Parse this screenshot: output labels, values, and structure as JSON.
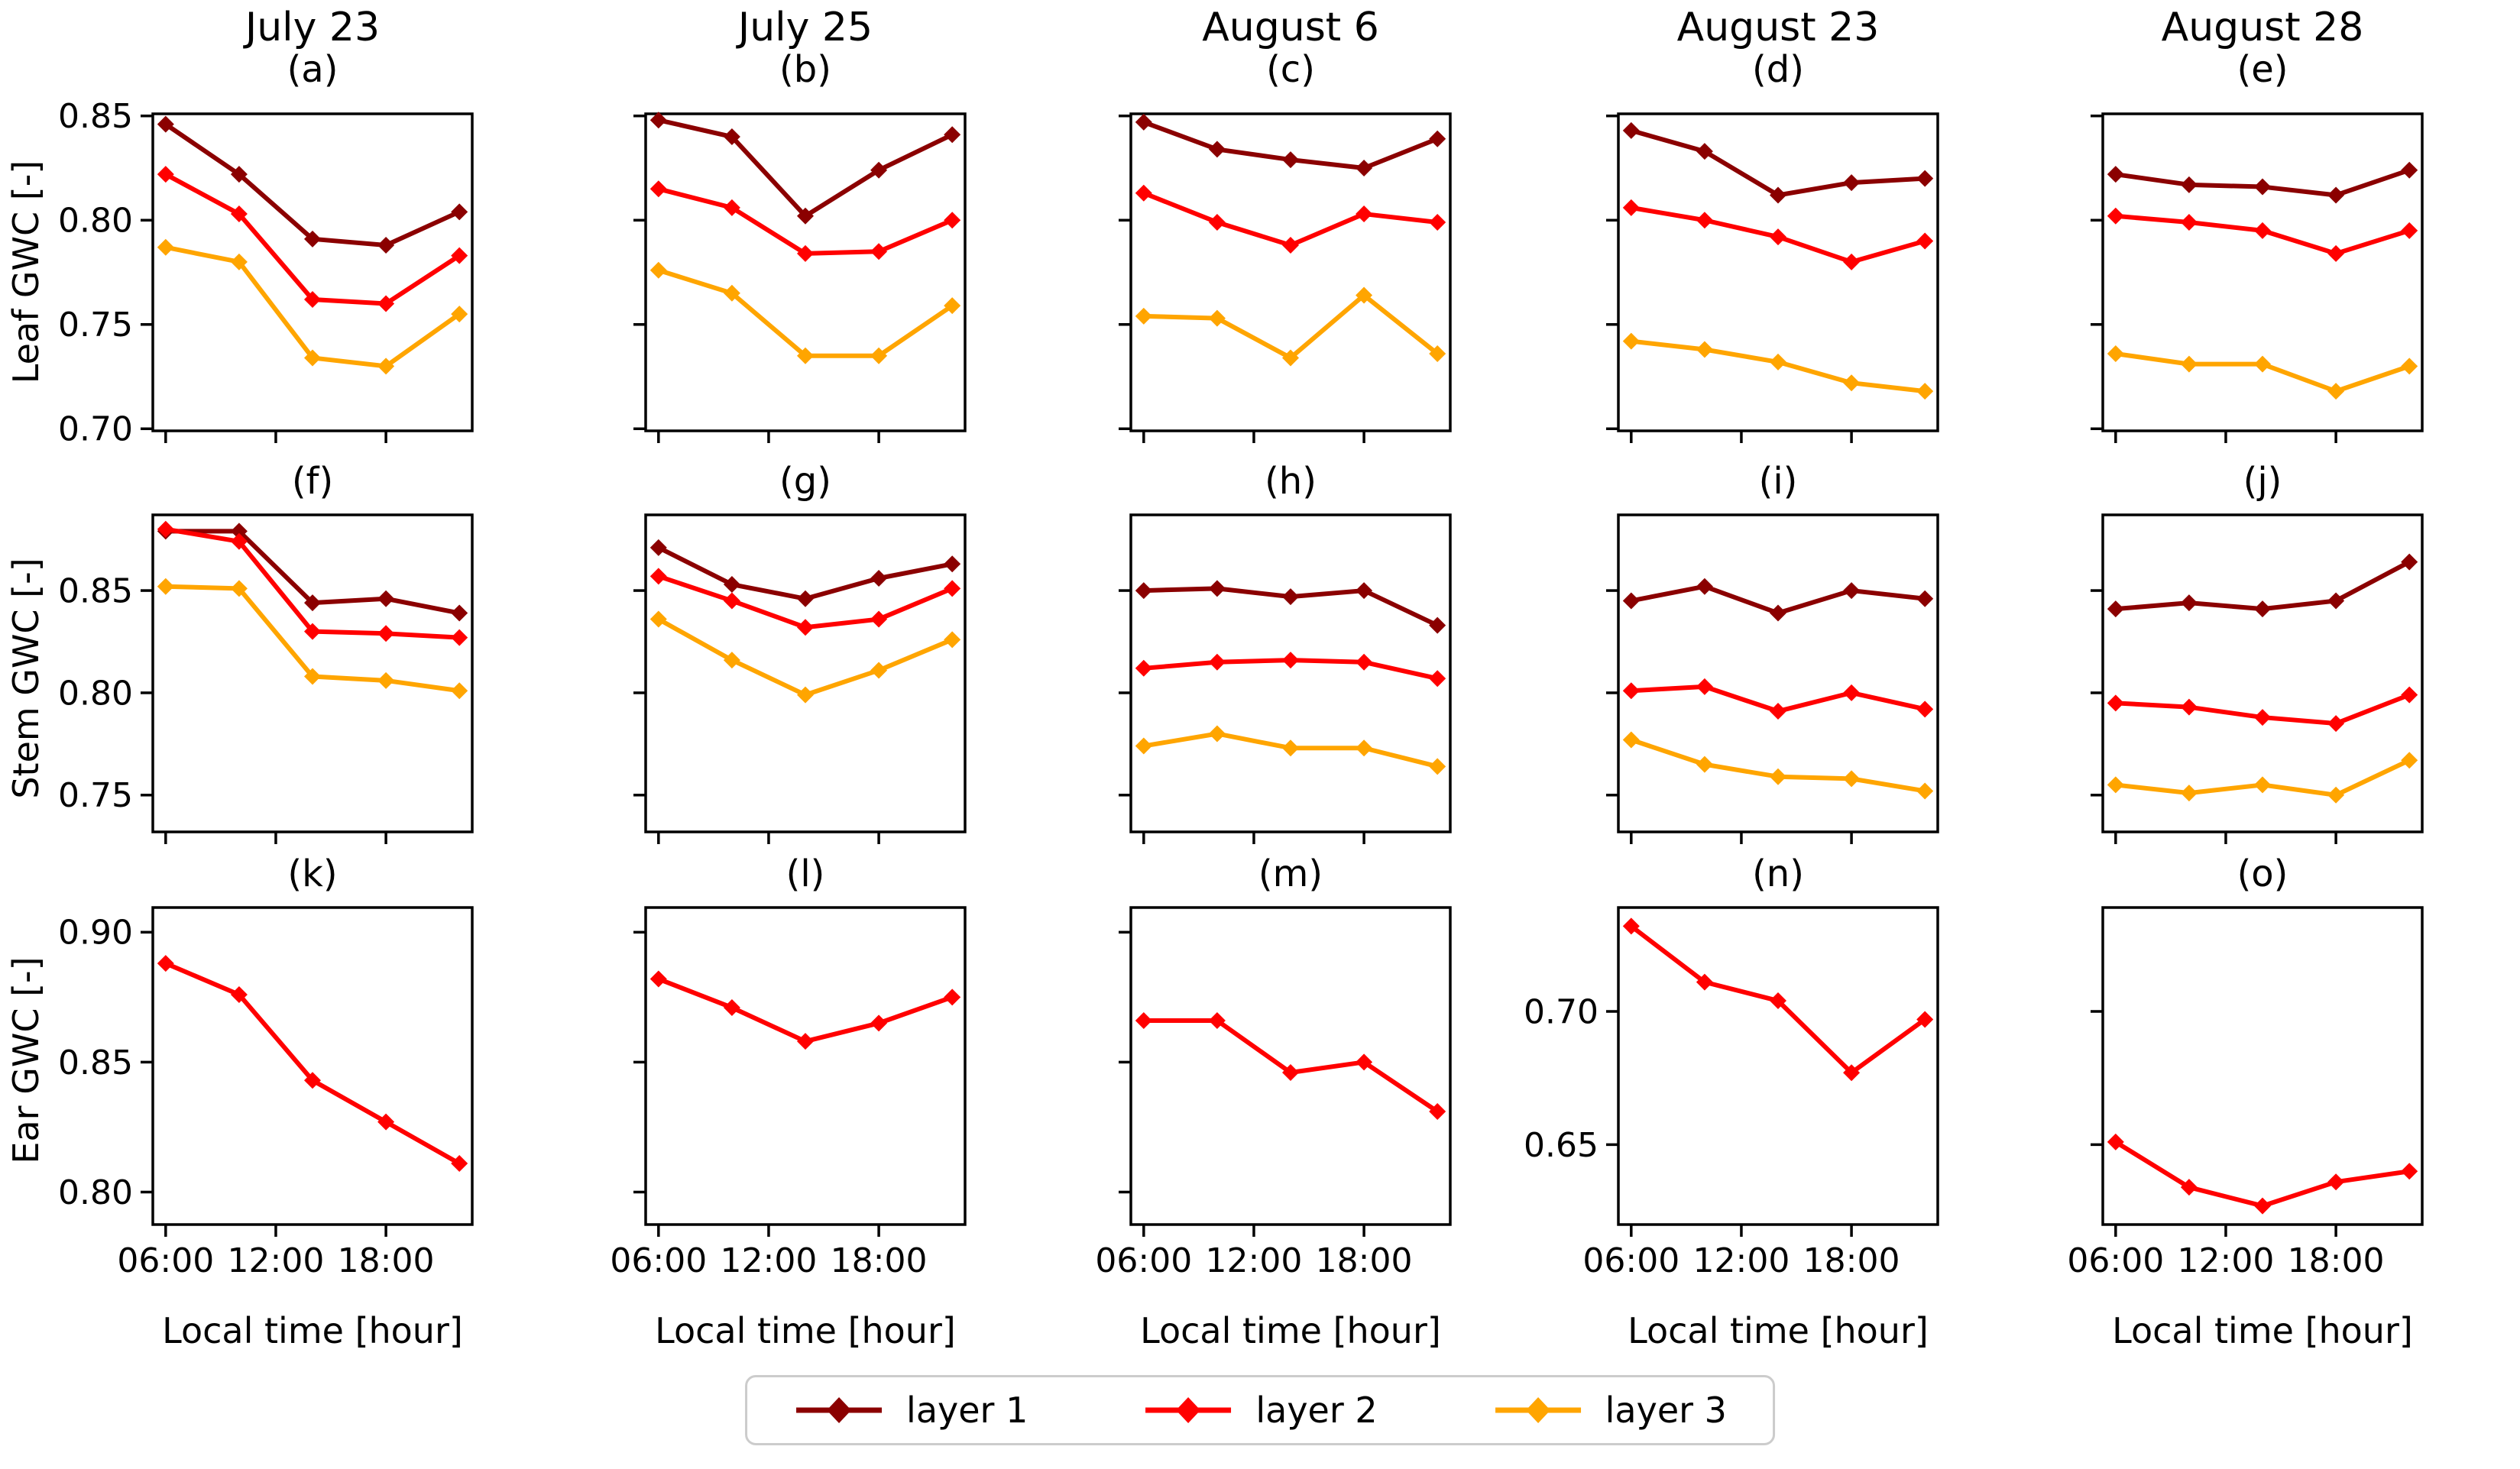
{
  "figure": {
    "xlabel": "Local time [hour]",
    "xlim": [
      5.3,
      22.7
    ],
    "xticks": {
      "values": [
        6,
        12,
        18
      ],
      "labels": [
        "06:00",
        "12:00",
        "18:00"
      ]
    },
    "x_hours": [
      6,
      10,
      14,
      18,
      22
    ],
    "colors": {
      "layer1": "#8B0000",
      "layer2": "#FF0000",
      "layer3": "#FFA500",
      "axis": "#000000",
      "legend_border": "#cccccc"
    }
  },
  "rows": [
    {
      "ylabel": "Leaf GWC [-]"
    },
    {
      "ylabel": "Stem GWC [-]"
    },
    {
      "ylabel": "Ear GWC [-]"
    }
  ],
  "legend": {
    "entries": [
      {
        "label": "layer 1",
        "color": "#8B0000"
      },
      {
        "label": "layer 2",
        "color": "#FF0000"
      },
      {
        "label": "layer 3",
        "color": "#FFA500"
      }
    ]
  },
  "chart_data": [
    {
      "type": "line",
      "panel": "(a)",
      "column_title": "July 23",
      "row": 0,
      "col": 0,
      "ylim": [
        0.699,
        0.851
      ],
      "yticks": {
        "values": [
          0.7,
          0.75,
          0.8,
          0.85
        ],
        "labels": [
          "0.70",
          "0.75",
          "0.80",
          "0.85"
        ],
        "show_labels": true
      },
      "x": [
        6,
        10,
        14,
        18,
        22
      ],
      "series": [
        {
          "name": "layer 1",
          "color": "#8B0000",
          "values": [
            0.846,
            0.822,
            0.791,
            0.788,
            0.804
          ]
        },
        {
          "name": "layer 2",
          "color": "#FF0000",
          "values": [
            0.822,
            0.803,
            0.762,
            0.76,
            0.783
          ]
        },
        {
          "name": "layer 3",
          "color": "#FFA500",
          "values": [
            0.787,
            0.78,
            0.734,
            0.73,
            0.755
          ]
        }
      ]
    },
    {
      "type": "line",
      "panel": "(b)",
      "column_title": "July 25",
      "row": 0,
      "col": 1,
      "ylim": [
        0.699,
        0.851
      ],
      "yticks": {
        "values": [
          0.7,
          0.75,
          0.8,
          0.85
        ],
        "labels": [
          "0.70",
          "0.75",
          "0.80",
          "0.85"
        ],
        "show_labels": false
      },
      "x": [
        6,
        10,
        14,
        18,
        22
      ],
      "series": [
        {
          "name": "layer 1",
          "color": "#8B0000",
          "values": [
            0.848,
            0.84,
            0.802,
            0.824,
            0.841
          ]
        },
        {
          "name": "layer 2",
          "color": "#FF0000",
          "values": [
            0.815,
            0.806,
            0.784,
            0.785,
            0.8
          ]
        },
        {
          "name": "layer 3",
          "color": "#FFA500",
          "values": [
            0.776,
            0.765,
            0.735,
            0.735,
            0.759
          ]
        }
      ]
    },
    {
      "type": "line",
      "panel": "(c)",
      "column_title": "August 6",
      "row": 0,
      "col": 2,
      "ylim": [
        0.699,
        0.851
      ],
      "yticks": {
        "values": [
          0.7,
          0.75,
          0.8,
          0.85
        ],
        "labels": [
          "0.70",
          "0.75",
          "0.80",
          "0.85"
        ],
        "show_labels": false
      },
      "x": [
        6,
        10,
        14,
        18,
        22
      ],
      "series": [
        {
          "name": "layer 1",
          "color": "#8B0000",
          "values": [
            0.847,
            0.834,
            0.829,
            0.825,
            0.839
          ]
        },
        {
          "name": "layer 2",
          "color": "#FF0000",
          "values": [
            0.813,
            0.799,
            0.788,
            0.803,
            0.799
          ]
        },
        {
          "name": "layer 3",
          "color": "#FFA500",
          "values": [
            0.754,
            0.753,
            0.734,
            0.764,
            0.736
          ]
        }
      ]
    },
    {
      "type": "line",
      "panel": "(d)",
      "column_title": "August 23",
      "row": 0,
      "col": 3,
      "ylim": [
        0.699,
        0.851
      ],
      "yticks": {
        "values": [
          0.7,
          0.75,
          0.8,
          0.85
        ],
        "labels": [
          "0.70",
          "0.75",
          "0.80",
          "0.85"
        ],
        "show_labels": false
      },
      "x": [
        6,
        10,
        14,
        18,
        22
      ],
      "series": [
        {
          "name": "layer 1",
          "color": "#8B0000",
          "values": [
            0.843,
            0.833,
            0.812,
            0.818,
            0.82
          ]
        },
        {
          "name": "layer 2",
          "color": "#FF0000",
          "values": [
            0.806,
            0.8,
            0.792,
            0.78,
            0.79
          ]
        },
        {
          "name": "layer 3",
          "color": "#FFA500",
          "values": [
            0.742,
            0.738,
            0.732,
            0.722,
            0.718
          ]
        }
      ]
    },
    {
      "type": "line",
      "panel": "(e)",
      "column_title": "August 28",
      "row": 0,
      "col": 4,
      "ylim": [
        0.699,
        0.851
      ],
      "yticks": {
        "values": [
          0.7,
          0.75,
          0.8,
          0.85
        ],
        "labels": [
          "0.70",
          "0.75",
          "0.80",
          "0.85"
        ],
        "show_labels": false
      },
      "x": [
        6,
        10,
        14,
        18,
        22
      ],
      "series": [
        {
          "name": "layer 1",
          "color": "#8B0000",
          "values": [
            0.822,
            0.817,
            0.816,
            0.812,
            0.824
          ]
        },
        {
          "name": "layer 2",
          "color": "#FF0000",
          "values": [
            0.802,
            0.799,
            0.795,
            0.784,
            0.795
          ]
        },
        {
          "name": "layer 3",
          "color": "#FFA500",
          "values": [
            0.736,
            0.731,
            0.731,
            0.718,
            0.73
          ]
        }
      ]
    },
    {
      "type": "line",
      "panel": "(f)",
      "column_title": null,
      "row": 1,
      "col": 0,
      "ylim": [
        0.732,
        0.887
      ],
      "yticks": {
        "values": [
          0.75,
          0.8,
          0.85
        ],
        "labels": [
          "0.75",
          "0.80",
          "0.85"
        ],
        "show_labels": true
      },
      "x": [
        6,
        10,
        14,
        18,
        22
      ],
      "series": [
        {
          "name": "layer 1",
          "color": "#8B0000",
          "values": [
            0.879,
            0.879,
            0.844,
            0.846,
            0.839
          ]
        },
        {
          "name": "layer 2",
          "color": "#FF0000",
          "values": [
            0.88,
            0.874,
            0.83,
            0.829,
            0.827
          ]
        },
        {
          "name": "layer 3",
          "color": "#FFA500",
          "values": [
            0.852,
            0.851,
            0.808,
            0.806,
            0.801
          ]
        }
      ]
    },
    {
      "type": "line",
      "panel": "(g)",
      "column_title": null,
      "row": 1,
      "col": 1,
      "ylim": [
        0.732,
        0.887
      ],
      "yticks": {
        "values": [
          0.75,
          0.8,
          0.85
        ],
        "labels": [
          "0.75",
          "0.80",
          "0.85"
        ],
        "show_labels": false
      },
      "x": [
        6,
        10,
        14,
        18,
        22
      ],
      "series": [
        {
          "name": "layer 1",
          "color": "#8B0000",
          "values": [
            0.871,
            0.853,
            0.846,
            0.856,
            0.863
          ]
        },
        {
          "name": "layer 2",
          "color": "#FF0000",
          "values": [
            0.857,
            0.845,
            0.832,
            0.836,
            0.851
          ]
        },
        {
          "name": "layer 3",
          "color": "#FFA500",
          "values": [
            0.836,
            0.816,
            0.799,
            0.811,
            0.826
          ]
        }
      ]
    },
    {
      "type": "line",
      "panel": "(h)",
      "column_title": null,
      "row": 1,
      "col": 2,
      "ylim": [
        0.732,
        0.887
      ],
      "yticks": {
        "values": [
          0.75,
          0.8,
          0.85
        ],
        "labels": [
          "0.75",
          "0.80",
          "0.85"
        ],
        "show_labels": false
      },
      "x": [
        6,
        10,
        14,
        18,
        22
      ],
      "series": [
        {
          "name": "layer 1",
          "color": "#8B0000",
          "values": [
            0.85,
            0.851,
            0.847,
            0.85,
            0.833
          ]
        },
        {
          "name": "layer 2",
          "color": "#FF0000",
          "values": [
            0.812,
            0.815,
            0.816,
            0.815,
            0.807
          ]
        },
        {
          "name": "layer 3",
          "color": "#FFA500",
          "values": [
            0.774,
            0.78,
            0.773,
            0.773,
            0.764
          ]
        }
      ]
    },
    {
      "type": "line",
      "panel": "(i)",
      "column_title": null,
      "row": 1,
      "col": 3,
      "ylim": [
        0.732,
        0.887
      ],
      "yticks": {
        "values": [
          0.75,
          0.8,
          0.85
        ],
        "labels": [
          "0.75",
          "0.80",
          "0.85"
        ],
        "show_labels": false
      },
      "x": [
        6,
        10,
        14,
        18,
        22
      ],
      "series": [
        {
          "name": "layer 1",
          "color": "#8B0000",
          "values": [
            0.845,
            0.852,
            0.839,
            0.85,
            0.846
          ]
        },
        {
          "name": "layer 2",
          "color": "#FF0000",
          "values": [
            0.801,
            0.803,
            0.791,
            0.8,
            0.792
          ]
        },
        {
          "name": "layer 3",
          "color": "#FFA500",
          "values": [
            0.777,
            0.765,
            0.759,
            0.758,
            0.752
          ]
        }
      ]
    },
    {
      "type": "line",
      "panel": "(j)",
      "column_title": null,
      "row": 1,
      "col": 4,
      "ylim": [
        0.732,
        0.887
      ],
      "yticks": {
        "values": [
          0.75,
          0.8,
          0.85
        ],
        "labels": [
          "0.75",
          "0.80",
          "0.85"
        ],
        "show_labels": false
      },
      "x": [
        6,
        10,
        14,
        18,
        22
      ],
      "series": [
        {
          "name": "layer 1",
          "color": "#8B0000",
          "values": [
            0.841,
            0.844,
            0.841,
            0.845,
            0.864
          ]
        },
        {
          "name": "layer 2",
          "color": "#FF0000",
          "values": [
            0.795,
            0.793,
            0.788,
            0.785,
            0.799
          ]
        },
        {
          "name": "layer 3",
          "color": "#FFA500",
          "values": [
            0.755,
            0.751,
            0.755,
            0.75,
            0.767
          ]
        }
      ]
    },
    {
      "type": "line",
      "panel": "(k)",
      "column_title": null,
      "row": 2,
      "col": 0,
      "ylim": [
        0.7875,
        0.9095
      ],
      "yticks": {
        "values": [
          0.8,
          0.85,
          0.9
        ],
        "labels": [
          "0.80",
          "0.85",
          "0.90"
        ],
        "show_labels": true
      },
      "x": [
        6,
        10,
        14,
        18,
        22
      ],
      "series": [
        {
          "name": "layer 2",
          "color": "#FF0000",
          "values": [
            0.888,
            0.876,
            0.843,
            0.827,
            0.811
          ]
        }
      ]
    },
    {
      "type": "line",
      "panel": "(l)",
      "column_title": null,
      "row": 2,
      "col": 1,
      "ylim": [
        0.7875,
        0.9095
      ],
      "yticks": {
        "values": [
          0.8,
          0.85,
          0.9
        ],
        "labels": [
          "0.80",
          "0.85",
          "0.90"
        ],
        "show_labels": false
      },
      "x": [
        6,
        10,
        14,
        18,
        22
      ],
      "series": [
        {
          "name": "layer 2",
          "color": "#FF0000",
          "values": [
            0.882,
            0.871,
            0.858,
            0.865,
            0.875
          ]
        }
      ]
    },
    {
      "type": "line",
      "panel": "(m)",
      "column_title": null,
      "row": 2,
      "col": 2,
      "ylim": [
        0.7875,
        0.9095
      ],
      "yticks": {
        "values": [
          0.8,
          0.85,
          0.9
        ],
        "labels": [
          "0.80",
          "0.85",
          "0.90"
        ],
        "show_labels": false
      },
      "x": [
        6,
        10,
        14,
        18,
        22
      ],
      "series": [
        {
          "name": "layer 2",
          "color": "#FF0000",
          "values": [
            0.866,
            0.866,
            0.846,
            0.85,
            0.831
          ]
        }
      ]
    },
    {
      "type": "line",
      "panel": "(n)",
      "column_title": null,
      "row": 2,
      "col": 3,
      "ylim": [
        0.62,
        0.739
      ],
      "yticks": {
        "values": [
          0.65,
          0.7
        ],
        "labels": [
          "0.65",
          "0.70"
        ],
        "show_labels": true
      },
      "x": [
        6,
        10,
        14,
        18,
        22
      ],
      "series": [
        {
          "name": "layer 2",
          "color": "#FF0000",
          "values": [
            0.732,
            0.711,
            0.704,
            0.677,
            0.697
          ]
        }
      ]
    },
    {
      "type": "line",
      "panel": "(o)",
      "column_title": null,
      "row": 2,
      "col": 4,
      "ylim": [
        0.62,
        0.739
      ],
      "yticks": {
        "values": [
          0.65,
          0.7
        ],
        "labels": [
          "0.65",
          "0.70"
        ],
        "show_labels": false
      },
      "x": [
        6,
        10,
        14,
        18,
        22
      ],
      "series": [
        {
          "name": "layer 2",
          "color": "#FF0000",
          "values": [
            0.651,
            0.634,
            0.627,
            0.636,
            0.64
          ]
        }
      ]
    }
  ]
}
